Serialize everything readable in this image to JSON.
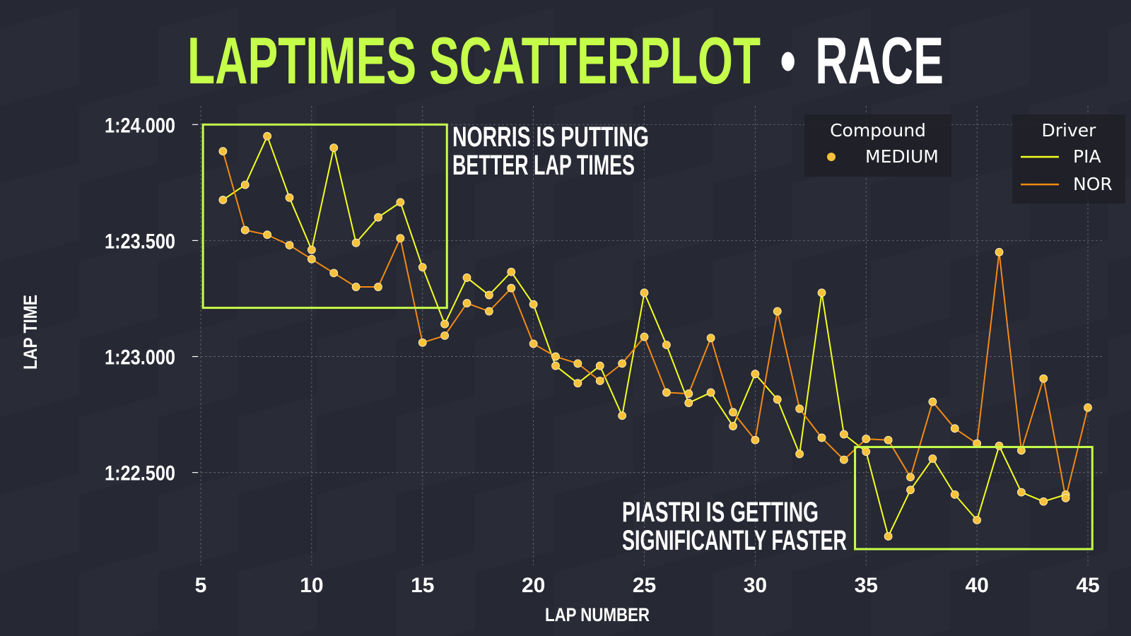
{
  "colors": {
    "background": "#262833",
    "checker": "#2b2d39",
    "accent": "#c6ff4a",
    "title_white": "#ffffff",
    "pia": "#f4ff1e",
    "nor": "#f28a12",
    "marker": "#f7c23a",
    "grid": "#6a6c78",
    "legend_bg": "#1e1f27"
  },
  "chart_data": {
    "type": "scatter",
    "title": "LAPTIMES SCATTERPLOT",
    "title_separator": "•",
    "subtitle": "RACE",
    "xlabel": "LAP NUMBER",
    "ylabel": "LAP TIME",
    "xlim": [
      5,
      45
    ],
    "ylim": [
      82.1,
      84.08
    ],
    "grid": true,
    "x_ticks": [
      5,
      10,
      15,
      20,
      25,
      30,
      35,
      40,
      45
    ],
    "y_ticks": [
      {
        "value": 82.5,
        "label": "1:22.500"
      },
      {
        "value": 83.0,
        "label": "1:23.000"
      },
      {
        "value": 83.5,
        "label": "1:23.500"
      },
      {
        "value": 84.0,
        "label": "1:24.000"
      }
    ],
    "series": [
      {
        "name": "PIA",
        "color": "#f4ff1e",
        "x": [
          6,
          7,
          8,
          9,
          10,
          11,
          12,
          13,
          14,
          15,
          16,
          17,
          18,
          19,
          20,
          21,
          22,
          23,
          24,
          25,
          26,
          27,
          28,
          29,
          30,
          31,
          32,
          33,
          34,
          35,
          36,
          37,
          38,
          39,
          40,
          41,
          42,
          43,
          44
        ],
        "y": [
          83.675,
          83.74,
          83.95,
          83.685,
          83.46,
          83.9,
          83.49,
          83.6,
          83.665,
          83.385,
          83.14,
          83.34,
          83.265,
          83.365,
          83.225,
          82.96,
          82.885,
          82.96,
          82.745,
          83.275,
          83.05,
          82.8,
          82.845,
          82.7,
          82.925,
          82.815,
          82.58,
          83.275,
          82.665,
          82.59,
          82.225,
          82.425,
          82.56,
          82.405,
          82.295,
          82.615,
          82.415,
          82.375,
          82.405
        ]
      },
      {
        "name": "NOR",
        "color": "#f28a12",
        "x": [
          6,
          7,
          8,
          9,
          10,
          11,
          12,
          13,
          14,
          15,
          16,
          17,
          18,
          19,
          20,
          21,
          22,
          23,
          24,
          25,
          26,
          27,
          28,
          29,
          30,
          31,
          32,
          33,
          34,
          35,
          36,
          37,
          38,
          39,
          40,
          41,
          42,
          43,
          44,
          45
        ],
        "y": [
          83.885,
          83.545,
          83.525,
          83.48,
          83.42,
          83.36,
          83.3,
          83.3,
          83.51,
          83.06,
          83.09,
          83.23,
          83.195,
          83.295,
          83.055,
          83.0,
          82.97,
          82.895,
          82.97,
          83.085,
          82.845,
          82.84,
          83.08,
          82.76,
          82.64,
          83.195,
          82.775,
          82.65,
          82.555,
          82.645,
          82.64,
          82.48,
          82.805,
          82.69,
          82.625,
          83.45,
          82.595,
          82.905,
          82.39,
          82.78
        ]
      }
    ],
    "legends": [
      {
        "title": "Compound",
        "placement": "top-right",
        "entries": [
          {
            "label": "MEDIUM",
            "kind": "marker"
          }
        ]
      },
      {
        "title": "Driver",
        "placement": "top-right",
        "entries": [
          {
            "label": "PIA",
            "kind": "line",
            "series": 0
          },
          {
            "label": "NOR",
            "kind": "line",
            "series": 1
          }
        ]
      }
    ],
    "annotations": [
      {
        "lines": [
          "NORRIS IS PUTTING",
          "BETTER LAP TIMES"
        ],
        "box": {
          "x": [
            5.1,
            16.1
          ],
          "y": [
            83.21,
            84.0
          ]
        }
      },
      {
        "lines": [
          "PIASTRI IS GETTING",
          "SIGNIFICANTLY FASTER"
        ],
        "box": {
          "x": [
            34.5,
            45.2
          ],
          "y": [
            82.17,
            82.61
          ]
        }
      }
    ]
  }
}
